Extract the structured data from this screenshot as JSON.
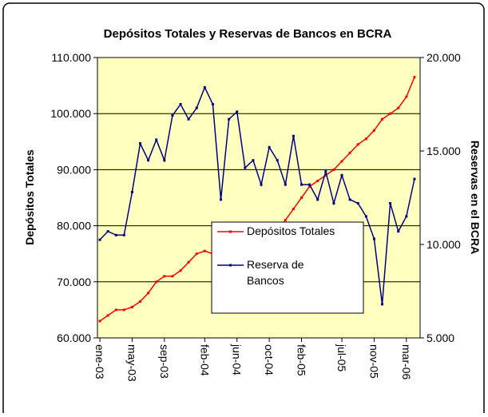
{
  "chart_data": {
    "type": "line",
    "title": "Depósitos Totales y Reservas de Bancos en BCRA",
    "y_label": "Depósitos Totales",
    "y2_label": "Reservas en el BCRA",
    "categories": [
      "ene-03",
      null,
      null,
      null,
      "may-03",
      null,
      null,
      null,
      "sep-03",
      null,
      null,
      null,
      null,
      "feb-04",
      null,
      null,
      null,
      "jun-04",
      null,
      null,
      null,
      "oct-04",
      null,
      null,
      null,
      "feb-05",
      null,
      null,
      null,
      null,
      "jul-05",
      null,
      null,
      null,
      "nov-05",
      null,
      null,
      null,
      "mar-06",
      null
    ],
    "series": [
      {
        "name": "Depósitos Totales",
        "color": "#ff0000",
        "values": [
          63000,
          64000,
          65000,
          65000,
          65500,
          66500,
          68000,
          70000,
          71000,
          71000,
          72000,
          73500,
          75000,
          75500,
          75000,
          75000,
          74500,
          74000,
          75500,
          76500,
          77000,
          78000,
          79000,
          81000,
          83000,
          85000,
          87000,
          88000,
          89000,
          90000,
          91500,
          93000,
          94500,
          95500,
          97000,
          99000,
          100000,
          101000,
          103000,
          106500
        ]
      },
      {
        "name": "Reserva de Bancos",
        "color": "#000080",
        "axis": "y2",
        "values": [
          10250,
          10700,
          10500,
          10500,
          12800,
          15400,
          14500,
          15600,
          14500,
          16900,
          17500,
          16700,
          17300,
          18400,
          17500,
          12400,
          16700,
          17100,
          14100,
          14500,
          13200,
          15200,
          14500,
          13200,
          15800,
          13200,
          13200,
          12400,
          13900,
          12200,
          13700,
          12400,
          12200,
          11500,
          10300,
          6800,
          12200,
          10700,
          11500,
          13500
        ]
      }
    ],
    "ylim": [
      60000,
      110000
    ],
    "yticks": [
      {
        "value": 60000,
        "label": "60.000"
      },
      {
        "value": 70000,
        "label": "70.000"
      },
      {
        "value": 80000,
        "label": "80.000"
      },
      {
        "value": 90000,
        "label": "90.000"
      },
      {
        "value": 100000,
        "label": "100.000"
      },
      {
        "value": 110000,
        "label": "110.000"
      }
    ],
    "y2lim": [
      5000,
      20000
    ],
    "y2ticks": [
      {
        "value": 5000,
        "label": "5.000"
      },
      {
        "value": 10000,
        "label": "10.000"
      },
      {
        "value": 15000,
        "label": "15.000"
      },
      {
        "value": 20000,
        "label": "20.000"
      }
    ],
    "grid": true
  }
}
